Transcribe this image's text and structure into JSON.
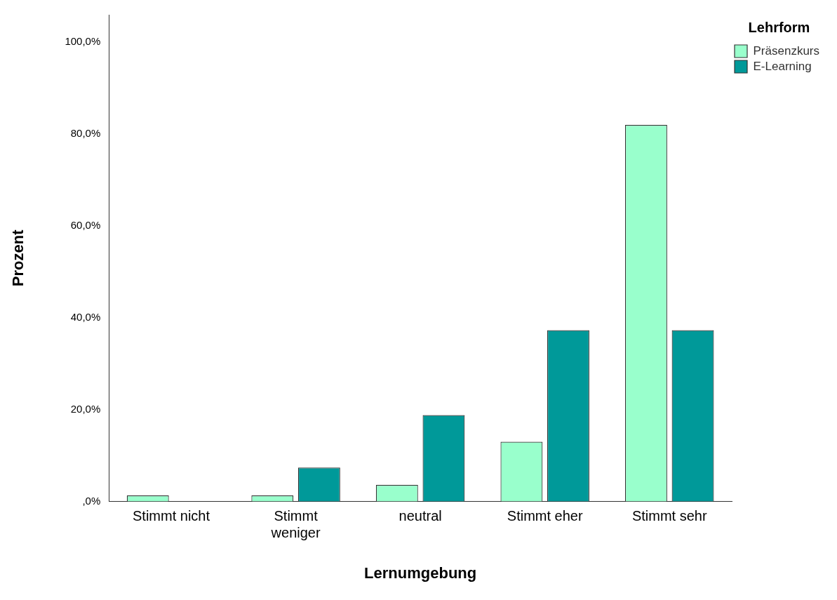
{
  "chart_data": {
    "type": "bar",
    "xlabel": "Lernumgebung",
    "ylabel": "Prozent",
    "legend_title": "Lehrform",
    "categories": [
      "Stimmt nicht",
      "Stimmt weniger",
      "neutral",
      "Stimmt eher",
      "Stimmt sehr"
    ],
    "series": [
      {
        "name": "Präsenzkurs",
        "color": "#99ffcc",
        "values": [
          1.3,
          1.3,
          3.6,
          13.0,
          82.0
        ]
      },
      {
        "name": "E-Learning",
        "color": "#009999",
        "values": [
          0,
          7.4,
          18.8,
          37.3,
          37.3
        ]
      }
    ],
    "ylim": [
      0,
      106
    ],
    "yticks": [
      {
        "value": 0,
        "label": ",0%"
      },
      {
        "value": 20,
        "label": "20,0%"
      },
      {
        "value": 40,
        "label": "40,0%"
      },
      {
        "value": 60,
        "label": "60,0%"
      },
      {
        "value": 80,
        "label": "80,0%"
      },
      {
        "value": 100,
        "label": "100,0%"
      }
    ],
    "grid": false,
    "legend": "top right"
  }
}
